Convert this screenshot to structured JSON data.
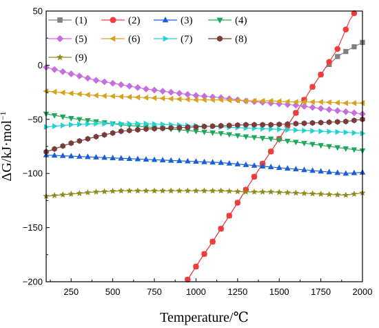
{
  "chart_data": {
    "type": "line",
    "xlabel": "Temperature/℃",
    "ylabel": "ΔG/kJ·mol",
    "ylabel_sup": "−1",
    "xlim": [
      100,
      2000
    ],
    "ylim": [
      -200,
      50
    ],
    "xticks": [
      250,
      500,
      750,
      1000,
      1250,
      1500,
      1750,
      2000
    ],
    "yticks": [
      -200,
      -150,
      -100,
      -50,
      0,
      50
    ],
    "xtick_labels": [
      "250",
      "500",
      "750",
      "1000",
      "1250",
      "1500",
      "1750",
      "2000"
    ],
    "ytick_labels": [
      "−200",
      "−150",
      "−100",
      "−50",
      "0",
      "50"
    ],
    "grid": false,
    "legend_position": "top-left, inside",
    "series": [
      {
        "name": "(1)",
        "color": "#808080",
        "marker": "square",
        "x": [
          950,
          1025,
          1100,
          1175,
          1250,
          1325,
          1400,
          1475,
          1550,
          1625,
          1700,
          1775,
          1850,
          1925,
          2000
        ],
        "y": [
          -198,
          -180,
          -163,
          -145,
          -127,
          -109,
          -91,
          -74,
          -56,
          -38,
          -20,
          -3,
          8,
          15,
          21
        ]
      },
      {
        "name": "(2)",
        "color": "#f03c3c",
        "marker": "circle",
        "x": [
          950,
          1025,
          1100,
          1175,
          1250,
          1325,
          1400,
          1475,
          1550,
          1625,
          1700,
          1775,
          1850,
          1925,
          1950
        ],
        "y": [
          -198,
          -180,
          -163,
          -145,
          -127,
          -109,
          -91,
          -74,
          -56,
          -38,
          -20,
          -3,
          15,
          42,
          48
        ]
      },
      {
        "name": "(3)",
        "color": "#1a5fd6",
        "marker": "triangle-up",
        "x": [
          100,
          250,
          400,
          550,
          700,
          850,
          1000,
          1150,
          1300,
          1450,
          1600,
          1750,
          1900,
          2000
        ],
        "y": [
          -83,
          -84,
          -85,
          -86,
          -87,
          -88,
          -89,
          -90,
          -92,
          -94,
          -96,
          -98,
          -100,
          -99
        ]
      },
      {
        "name": "(4)",
        "color": "#1ea85a",
        "marker": "triangle-down",
        "x": [
          100,
          250,
          400,
          550,
          700,
          850,
          1000,
          1150,
          1300,
          1450,
          1600,
          1750,
          1900,
          2000
        ],
        "y": [
          -45,
          -49,
          -52,
          -55,
          -57,
          -59,
          -61,
          -63,
          -66,
          -68,
          -71,
          -74,
          -77,
          -79
        ]
      },
      {
        "name": "(5)",
        "color": "#c46ee0",
        "marker": "diamond",
        "x": [
          100,
          250,
          400,
          550,
          700,
          850,
          1000,
          1150,
          1300,
          1450,
          1600,
          1750,
          1900,
          2000
        ],
        "y": [
          -2,
          -8,
          -14,
          -18,
          -22,
          -25,
          -28,
          -30,
          -33,
          -35,
          -37,
          -40,
          -43,
          -45
        ]
      },
      {
        "name": "(6)",
        "color": "#d9a21b",
        "marker": "triangle-left",
        "x": [
          100,
          250,
          400,
          550,
          700,
          850,
          1000,
          1150,
          1300,
          1450,
          1600,
          1750,
          1900,
          2000
        ],
        "y": [
          -24,
          -26,
          -28,
          -29,
          -30,
          -31,
          -32,
          -32,
          -33,
          -33,
          -34,
          -34,
          -35,
          -35
        ]
      },
      {
        "name": "(7)",
        "color": "#22d3d3",
        "marker": "triangle-right",
        "x": [
          100,
          250,
          400,
          550,
          700,
          850,
          1000,
          1150,
          1300,
          1450,
          1600,
          1750,
          1900,
          2000
        ],
        "y": [
          -57,
          -55,
          -54,
          -54,
          -54,
          -55,
          -56,
          -57,
          -58,
          -59,
          -60,
          -61,
          -62,
          -63
        ]
      },
      {
        "name": "(8)",
        "color": "#7a3b3b",
        "marker": "hexagon",
        "x": [
          100,
          250,
          400,
          550,
          700,
          850,
          1000,
          1150,
          1300,
          1450,
          1600,
          1750,
          1900,
          2000
        ],
        "y": [
          -80,
          -72,
          -66,
          -61,
          -59,
          -58,
          -57,
          -56,
          -55,
          -55,
          -54,
          -53,
          -52,
          -50
        ]
      },
      {
        "name": "(9)",
        "color": "#8c8c1a",
        "marker": "star",
        "x": [
          100,
          250,
          400,
          550,
          700,
          850,
          1000,
          1150,
          1300,
          1450,
          1600,
          1750,
          1900,
          2000
        ],
        "y": [
          -121,
          -119,
          -117,
          -116,
          -116,
          -116,
          -116,
          -116,
          -117,
          -117,
          -118,
          -119,
          -120,
          -118
        ]
      }
    ]
  }
}
